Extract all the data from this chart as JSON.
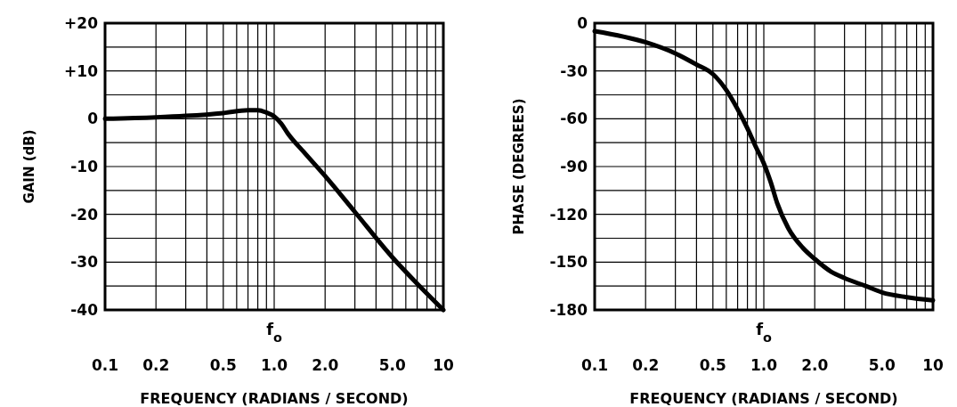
{
  "chart_data": [
    {
      "type": "line",
      "xlabel": "FREQUENCY  (RADIANS / SECOND)",
      "ylabel": "GAIN  (dB)",
      "log": "x",
      "grid": true,
      "marker": "none",
      "line_style": "solid",
      "xlim": [
        0.1,
        10
      ],
      "ylim": [
        -40,
        20
      ],
      "xticks": [
        {
          "value": 0.1,
          "label": "0.1"
        },
        {
          "value": 0.2,
          "label": "0.2"
        },
        {
          "value": 0.3,
          "label": null
        },
        {
          "value": 0.4,
          "label": null
        },
        {
          "value": 0.5,
          "label": "0.5"
        },
        {
          "value": 0.6,
          "label": null
        },
        {
          "value": 0.7,
          "label": null
        },
        {
          "value": 0.8,
          "label": null
        },
        {
          "value": 0.9,
          "label": null
        },
        {
          "value": 1,
          "label": "1.0"
        },
        {
          "value": 2,
          "label": "2.0"
        },
        {
          "value": 3,
          "label": null
        },
        {
          "value": 4,
          "label": null
        },
        {
          "value": 5,
          "label": "5.0"
        },
        {
          "value": 6,
          "label": null
        },
        {
          "value": 7,
          "label": null
        },
        {
          "value": 8,
          "label": null
        },
        {
          "value": 9,
          "label": null
        },
        {
          "value": 10,
          "label": "10"
        }
      ],
      "yticks": [
        -40,
        {
          "value": -35,
          "label": null
        },
        -30,
        {
          "value": -25,
          "label": null
        },
        -20,
        {
          "value": -15,
          "label": null
        },
        -10,
        {
          "value": -5,
          "label": null
        },
        0,
        {
          "value": 5,
          "label": null
        },
        {
          "value": 10,
          "label": "+10"
        },
        {
          "value": 15,
          "label": null
        },
        {
          "value": 20,
          "label": "+20"
        }
      ],
      "annotations": [
        "f$_{o}$"
      ],
      "series": [
        {
          "color": "#000000",
          "x": [
            0.1,
            0.2,
            0.3,
            0.5,
            0.7,
            0.8,
            0.9,
            1.0,
            1.1,
            1.2,
            1.5,
            2,
            3,
            5,
            7,
            10
          ],
          "values": [
            0,
            0.3,
            0.6,
            1.2,
            1.8,
            1.8,
            1.3,
            0.5,
            -1,
            -3,
            -7,
            -12,
            -19.5,
            -29,
            -34.5,
            -40
          ]
        }
      ]
    },
    {
      "type": "line",
      "xlabel": "FREQUENCY  (RADIANS / SECOND)",
      "ylabel": "PHASE (DEGREES)",
      "log": "x",
      "grid": true,
      "marker": "none",
      "line_style": "solid",
      "xlim": [
        0.1,
        10
      ],
      "ylim": [
        -180,
        0
      ],
      "xticks": [
        {
          "value": 0.1,
          "label": "0.1"
        },
        {
          "value": 0.2,
          "label": "0.2"
        },
        {
          "value": 0.3,
          "label": null
        },
        {
          "value": 0.4,
          "label": null
        },
        {
          "value": 0.5,
          "label": "0.5"
        },
        {
          "value": 0.6,
          "label": null
        },
        {
          "value": 0.7,
          "label": null
        },
        {
          "value": 0.8,
          "label": null
        },
        {
          "value": 0.9,
          "label": null
        },
        {
          "value": 1,
          "label": "1.0"
        },
        {
          "value": 2,
          "label": "2.0"
        },
        {
          "value": 3,
          "label": null
        },
        {
          "value": 4,
          "label": null
        },
        {
          "value": 5,
          "label": "5.0"
        },
        {
          "value": 6,
          "label": null
        },
        {
          "value": 7,
          "label": null
        },
        {
          "value": 8,
          "label": null
        },
        {
          "value": 9,
          "label": null
        },
        {
          "value": 10,
          "label": "10"
        }
      ],
      "yticks": [
        -180,
        {
          "value": -165,
          "label": null
        },
        -150,
        {
          "value": -135,
          "label": null
        },
        -120,
        {
          "value": -105,
          "label": null
        },
        -90,
        {
          "value": -75,
          "label": null
        },
        -60,
        {
          "value": -45,
          "label": null
        },
        -30,
        {
          "value": -15,
          "label": null
        },
        0
      ],
      "annotations": [
        "f$_{o}$"
      ],
      "series": [
        {
          "color": "#000000",
          "x": [
            0.1,
            0.2,
            0.3,
            0.4,
            0.5,
            0.6,
            0.7,
            0.8,
            0.9,
            1.0,
            1.1,
            1.2,
            1.4,
            1.7,
            2,
            2.5,
            3,
            4,
            5,
            7,
            10
          ],
          "values": [
            -5,
            -12,
            -19,
            -26,
            -32,
            -42,
            -54,
            -66,
            -78,
            -88,
            -100,
            -113,
            -129,
            -141,
            -148,
            -156,
            -160,
            -165,
            -169,
            -172,
            -174
          ]
        }
      ]
    }
  ]
}
